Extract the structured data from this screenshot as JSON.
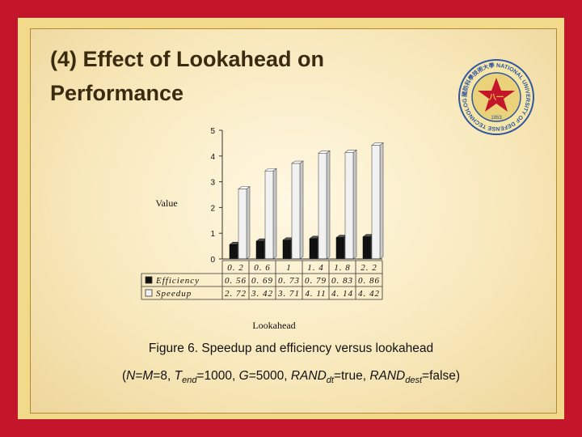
{
  "slide": {
    "title": "(4) Effect of Lookahead on Performance",
    "caption": "Figure 6. Speedup and efficiency versus lookahead",
    "params": {
      "open": "(",
      "n": "N",
      "eq1": "=",
      "m": "M",
      "eq2": "=8, ",
      "t": "T",
      "t_sub": "end",
      "eq3": "=1000, ",
      "g": "G",
      "eq4": "=5000, ",
      "rand1": "RAND",
      "rand1_sub": "dt",
      "eq5": "=true, ",
      "rand2": "RAND",
      "rand2_sub": "dest",
      "eq6": "=false)"
    }
  },
  "emblem": {
    "ring_text": "國防科學技術大學 NATIONAL UNIVERSITY OF DEFENSE TECHNOLOGY",
    "center_text": "八一",
    "bottom_text": "1953"
  },
  "colors": {
    "efficiency": "#111111",
    "speedup": "#f2f2f2",
    "frame": "#c4162a"
  },
  "chart_data": {
    "type": "bar",
    "categories": [
      "0. 2",
      "0. 6",
      "1",
      "1. 4",
      "1. 8",
      "2. 2"
    ],
    "series": [
      {
        "name": "Efficiency",
        "values": [
          0.56,
          0.69,
          0.73,
          0.79,
          0.83,
          0.86
        ],
        "labels": [
          "0. 56",
          "0. 69",
          "0. 73",
          "0. 79",
          "0. 83",
          "0. 86"
        ]
      },
      {
        "name": "Speedup",
        "values": [
          2.72,
          3.42,
          3.71,
          4.11,
          4.14,
          4.42
        ],
        "labels": [
          "2. 72",
          "3. 42",
          "3. 71",
          "4. 11",
          "4. 14",
          "4. 42"
        ]
      }
    ],
    "xlabel": "Lookahead",
    "ylabel": "Value",
    "ylim": [
      0,
      5
    ],
    "yticks": [
      "0",
      "1",
      "2",
      "3",
      "4",
      "5"
    ],
    "style": "3d-bars-with-data-table"
  }
}
